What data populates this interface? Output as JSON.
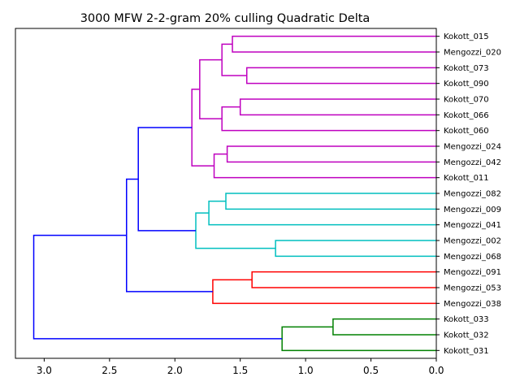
{
  "chart_data": {
    "type": "dendrogram",
    "title": "3000 MFW 2-2-gram 20% culling Quadratic Delta",
    "orientation": "left",
    "xlim": [
      3.22,
      0.0
    ],
    "x_ticks": [
      "3.0",
      "2.5",
      "2.0",
      "1.5",
      "1.0",
      "0.5",
      "0.0"
    ],
    "x_tick_values": [
      3.0,
      2.5,
      2.0,
      1.5,
      1.0,
      0.5,
      0.0
    ],
    "leaves": [
      "Kokott_015",
      "Mengozzi_020",
      "Kokott_073",
      "Kokott_090",
      "Kokott_070",
      "Kokott_066",
      "Kokott_060",
      "Mengozzi_024",
      "Mengozzi_042",
      "Kokott_011",
      "Mengozzi_082",
      "Mengozzi_009",
      "Mengozzi_041",
      "Mengozzi_002",
      "Mengozzi_068",
      "Mengozzi_091",
      "Mengozzi_053",
      "Mengozzi_038",
      "Kokott_033",
      "Kokott_032",
      "Kokott_031"
    ],
    "colors": {
      "magenta": "#bf00bf",
      "cyan": "#00bfbf",
      "red": "#ff0000",
      "green": "#008000",
      "blue": "#0000ff"
    },
    "merges": [
      {
        "left": "Kokott_015",
        "right": "Mengozzi_020",
        "height": 1.56,
        "color": "magenta"
      },
      {
        "left": "Kokott_073",
        "right": "Kokott_090",
        "height": 1.45,
        "color": "magenta"
      },
      {
        "left": "m0",
        "right": "m1",
        "height": 1.64,
        "color": "magenta"
      },
      {
        "left": "Kokott_070",
        "right": "Kokott_066",
        "height": 1.5,
        "color": "magenta"
      },
      {
        "left": "m3",
        "right": "Kokott_060",
        "height": 1.64,
        "color": "magenta"
      },
      {
        "left": "m2",
        "right": "m4",
        "height": 1.81,
        "color": "magenta"
      },
      {
        "left": "Mengozzi_024",
        "right": "Mengozzi_042",
        "height": 1.6,
        "color": "magenta"
      },
      {
        "left": "m6",
        "right": "Kokott_011",
        "height": 1.7,
        "color": "magenta"
      },
      {
        "left": "m5",
        "right": "m7",
        "height": 1.87,
        "color": "magenta"
      },
      {
        "left": "Mengozzi_082",
        "right": "Mengozzi_009",
        "height": 1.61,
        "color": "cyan"
      },
      {
        "left": "m9",
        "right": "Mengozzi_041",
        "height": 1.74,
        "color": "cyan"
      },
      {
        "left": "Mengozzi_002",
        "right": "Mengozzi_068",
        "height": 1.23,
        "color": "cyan"
      },
      {
        "left": "m10",
        "right": "m11",
        "height": 1.84,
        "color": "cyan"
      },
      {
        "left": "m8",
        "right": "m12",
        "height": 2.28,
        "color": "blue"
      },
      {
        "left": "Mengozzi_091",
        "right": "Mengozzi_053",
        "height": 1.41,
        "color": "red"
      },
      {
        "left": "m14",
        "right": "Mengozzi_038",
        "height": 1.71,
        "color": "red"
      },
      {
        "left": "m13",
        "right": "m15",
        "height": 2.37,
        "color": "blue"
      },
      {
        "left": "Kokott_033",
        "right": "Kokott_032",
        "height": 0.79,
        "color": "green"
      },
      {
        "left": "m17",
        "right": "Kokott_031",
        "height": 1.18,
        "color": "green"
      },
      {
        "left": "m16",
        "right": "m18",
        "height": 3.08,
        "color": "blue"
      }
    ]
  }
}
